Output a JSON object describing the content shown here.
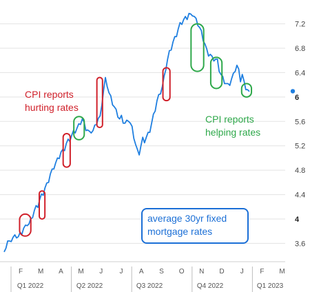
{
  "chart_data": {
    "type": "line",
    "title": "",
    "xlabel": "",
    "ylabel": "",
    "ylim": [
      3.3,
      7.5
    ],
    "yticks": [
      3.6,
      4,
      4.4,
      4.8,
      5.2,
      5.6,
      6,
      6.4,
      6.8,
      7.2
    ],
    "ytick_labels": [
      "3.6",
      "4",
      "4.4",
      "4.8",
      "5.2",
      "5.6",
      "6",
      "6.4",
      "6.8",
      "7.2"
    ],
    "bold_ticks": [
      4,
      6
    ],
    "months": [
      "F",
      "M",
      "A",
      "M",
      "J",
      "J",
      "A",
      "S",
      "O",
      "N",
      "D",
      "J",
      "F",
      "M"
    ],
    "quarters": [
      "Q1 2022",
      "Q2 2022",
      "Q3 2022",
      "Q4 2022",
      "Q1 2023"
    ],
    "series": [
      {
        "color": "#1f7fe0",
        "values": [
          3.42,
          3.55,
          3.62,
          3.6,
          3.66,
          3.68,
          3.7,
          3.72,
          3.69,
          3.74,
          3.78,
          3.83,
          3.86,
          3.92,
          3.9,
          3.97,
          4.05,
          4.12,
          4.18,
          4.22,
          4.3,
          4.37,
          4.42,
          4.49,
          4.55,
          4.63,
          4.72,
          4.78,
          4.85,
          4.9,
          4.96,
          5.02,
          5.08,
          5.1,
          5.15,
          5.22,
          5.27,
          5.3,
          5.35,
          5.41,
          5.44,
          5.47,
          5.52,
          5.58,
          5.62,
          5.55,
          5.48,
          5.44,
          5.4,
          5.44,
          5.43,
          5.5,
          5.58,
          5.63,
          5.65,
          5.9,
          6.1,
          6.28,
          6.2,
          6.05,
          5.98,
          5.9,
          5.82,
          5.76,
          5.7,
          5.62,
          5.66,
          5.6,
          5.55,
          5.58,
          5.63,
          5.55,
          5.48,
          5.35,
          5.2,
          5.1,
          5.08,
          5.18,
          5.3,
          5.28,
          5.32,
          5.38,
          5.45,
          5.55,
          5.68,
          5.8,
          5.92,
          6.0,
          6.08,
          6.15,
          6.3,
          6.48,
          6.6,
          6.72,
          6.8,
          6.88,
          6.95,
          7.02,
          7.1,
          7.18,
          7.22,
          7.25,
          7.28,
          7.3,
          7.35,
          7.32,
          7.36,
          7.3,
          7.25,
          7.2,
          7.12,
          7.05,
          6.95,
          6.85,
          6.75,
          6.7,
          6.68,
          6.63,
          6.62,
          6.6,
          6.58,
          6.45,
          6.35,
          6.3,
          6.25,
          6.2,
          6.18,
          6.22,
          6.28,
          6.35,
          6.45,
          6.5,
          6.42,
          6.28,
          6.35,
          6.22,
          6.15,
          6.1,
          6.05
        ]
      }
    ],
    "last_value": 6.05,
    "highlights": [
      {
        "color": "#d0202a",
        "start": 0.055,
        "end": 0.095,
        "ymin": 3.72,
        "ymax": 4.08
      },
      {
        "color": "#d0202a",
        "start": 0.125,
        "end": 0.145,
        "ymin": 4.0,
        "ymax": 4.46
      },
      {
        "color": "#d0202a",
        "start": 0.21,
        "end": 0.235,
        "ymin": 4.85,
        "ymax": 5.4
      },
      {
        "color": "#2ea84a",
        "start": 0.248,
        "end": 0.285,
        "ymin": 5.3,
        "ymax": 5.68
      },
      {
        "color": "#d0202a",
        "start": 0.33,
        "end": 0.35,
        "ymin": 5.5,
        "ymax": 6.32
      },
      {
        "color": "#d0202a",
        "start": 0.565,
        "end": 0.59,
        "ymin": 5.94,
        "ymax": 6.48
      },
      {
        "color": "#2ea84a",
        "start": 0.665,
        "end": 0.71,
        "ymin": 6.42,
        "ymax": 7.2
      },
      {
        "color": "#2ea84a",
        "start": 0.735,
        "end": 0.775,
        "ymin": 6.14,
        "ymax": 6.65
      },
      {
        "color": "#2ea84a",
        "start": 0.845,
        "end": 0.88,
        "ymin": 6.0,
        "ymax": 6.22
      }
    ],
    "annotations": [
      {
        "lines": [
          "CPI reports",
          "hurting rates"
        ],
        "color": "#d0202a"
      },
      {
        "lines": [
          "CPI reports",
          "helping rates"
        ],
        "color": "#2ea84a"
      }
    ],
    "legend_box": {
      "lines": [
        "average 30yr fixed",
        "mortgage rates"
      ],
      "color": "#1b6fd6"
    }
  }
}
